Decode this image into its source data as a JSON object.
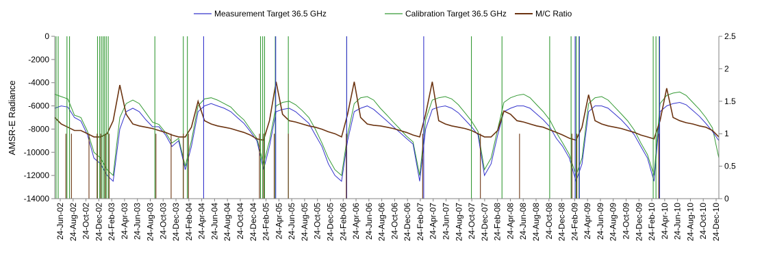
{
  "chart_data": {
    "type": "line",
    "title": "",
    "ylabel": "AMSR-E Radiance",
    "y2label": "",
    "ylim": [
      -14000,
      0
    ],
    "y2lim": [
      0,
      2.5
    ],
    "yticks": [
      0,
      -2000,
      -4000,
      -6000,
      -8000,
      -10000,
      -12000,
      -14000
    ],
    "y2ticks": [
      2.5,
      2,
      1.5,
      1,
      0.5,
      0
    ],
    "yticklabels": [
      "0",
      "-2000",
      "-4000",
      "-6000",
      "-8000",
      "-10000",
      "-12000",
      "-14000"
    ],
    "y2ticklabels": [
      "2.5",
      "2",
      "1.5",
      "1",
      "0.5",
      "0"
    ],
    "xlim": [
      "2002-06-24",
      "2010-12-24"
    ],
    "x_tick_labels": [
      "24-Jun-02",
      "24-Aug-02",
      "24-Oct-02",
      "24-Dec-02",
      "24-Feb-03",
      "24-Apr-03",
      "24-Jun-03",
      "24-Aug-03",
      "24-Oct-03",
      "24-Dec-03",
      "24-Feb-04",
      "24-Apr-04",
      "24-Jun-04",
      "24-Aug-04",
      "24-Oct-04",
      "24-Dec-04",
      "24-Feb-05",
      "24-Apr-05",
      "24-Jun-05",
      "24-Aug-05",
      "24-Oct-05",
      "24-Dec-05",
      "24-Feb-06",
      "24-Apr-06",
      "24-Jun-06",
      "24-Aug-06",
      "24-Oct-06",
      "24-Dec-06",
      "24-Feb-07",
      "24-Apr-07",
      "24-Jun-07",
      "24-Aug-07",
      "24-Oct-07",
      "24-Dec-07",
      "24-Feb-08",
      "24-Apr-08",
      "24-Jun-08",
      "24-Aug-08",
      "24-Oct-08",
      "24-Dec-08",
      "24-Feb-09",
      "24-Apr-09",
      "24-Jun-09",
      "24-Aug-09",
      "24-Oct-09",
      "24-Dec-09",
      "24-Feb-10",
      "24-Apr-10",
      "24-Jun-10",
      "24-Aug-10",
      "24-Oct-10",
      "24-Dec-10"
    ],
    "grid": false,
    "legend_position": "top",
    "series": [
      {
        "name": "Measurement Target 36.5 GHz",
        "axis": "left",
        "color": "#3333cc",
        "x": [
          "2002-06-24",
          "2002-07-24",
          "2002-08-24",
          "2002-09-24",
          "2002-10-24",
          "2002-11-24",
          "2002-12-24",
          "2003-01-24",
          "2003-02-24",
          "2003-03-24",
          "2003-04-24",
          "2003-05-24",
          "2003-06-24",
          "2003-07-24",
          "2003-08-24",
          "2003-09-24",
          "2003-10-24",
          "2003-11-24",
          "2003-12-24",
          "2004-01-24",
          "2004-02-24",
          "2004-03-24",
          "2004-04-24",
          "2004-05-24",
          "2004-06-24",
          "2004-07-24",
          "2004-08-24",
          "2004-09-24",
          "2004-10-24",
          "2004-11-24",
          "2004-12-24",
          "2005-01-24",
          "2005-02-24",
          "2005-03-24",
          "2005-04-24",
          "2005-05-24",
          "2005-06-24",
          "2005-07-24",
          "2005-08-24",
          "2005-09-24",
          "2005-10-24",
          "2005-11-24",
          "2005-12-24",
          "2006-01-24",
          "2006-02-24",
          "2006-03-24",
          "2006-04-24",
          "2006-05-24",
          "2006-06-24",
          "2006-07-24",
          "2006-08-24",
          "2006-09-24",
          "2006-10-24",
          "2006-11-24",
          "2006-12-24",
          "2007-01-24",
          "2007-02-24",
          "2007-03-24",
          "2007-04-24",
          "2007-05-24",
          "2007-06-24",
          "2007-07-24",
          "2007-08-24",
          "2007-09-24",
          "2007-10-24",
          "2007-11-24",
          "2007-12-24",
          "2008-01-24",
          "2008-02-24",
          "2008-03-24",
          "2008-04-24",
          "2008-05-24",
          "2008-06-24",
          "2008-07-24",
          "2008-08-24",
          "2008-09-24",
          "2008-10-24",
          "2008-11-24",
          "2008-12-24",
          "2009-01-24",
          "2009-02-24",
          "2009-03-24",
          "2009-04-24",
          "2009-05-24",
          "2009-06-24",
          "2009-07-24",
          "2009-08-24",
          "2009-09-24",
          "2009-10-24",
          "2009-11-24",
          "2009-12-24",
          "2010-01-24",
          "2010-02-24",
          "2010-03-24",
          "2010-04-24",
          "2010-05-24",
          "2010-06-24",
          "2010-07-24",
          "2010-08-24",
          "2010-09-24",
          "2010-10-24",
          "2010-11-24",
          "2010-12-24"
        ],
        "y": [
          -6200,
          -6000,
          -6100,
          -7000,
          -7300,
          -8500,
          -10500,
          -11000,
          -12000,
          -12500,
          -8000,
          -6500,
          -6200,
          -6500,
          -7200,
          -7800,
          -7800,
          -8500,
          -9500,
          -9000,
          -11500,
          -9500,
          -6500,
          -6000,
          -5800,
          -6000,
          -6200,
          -6500,
          -7000,
          -7500,
          -8200,
          -9000,
          -11500,
          -9500,
          -6500,
          -6300,
          -6200,
          -6500,
          -7000,
          -7500,
          -8500,
          -9500,
          -11000,
          -12000,
          -12500,
          -9000,
          -6500,
          -6200,
          -6000,
          -6300,
          -6800,
          -7300,
          -7800,
          -8300,
          -8800,
          -9300,
          -12500,
          -8000,
          -6300,
          -6100,
          -6000,
          -6200,
          -6600,
          -7200,
          -7800,
          -8500,
          -12000,
          -11000,
          -8500,
          -6500,
          -6200,
          -6000,
          -6000,
          -6200,
          -6700,
          -7200,
          -7800,
          -8800,
          -9500,
          -10500,
          -12500,
          -11000,
          -6500,
          -6000,
          -6000,
          -6200,
          -6700,
          -7200,
          -7800,
          -8500,
          -9500,
          -10500,
          -12500,
          -6500,
          -6000,
          -5800,
          -5700,
          -5900,
          -6400,
          -6900,
          -7500,
          -8200,
          -9000
        ]
      },
      {
        "name": "Calibration Target 36.5 GHz",
        "axis": "left",
        "color": "#339933",
        "x": [
          "2002-06-24",
          "2002-07-24",
          "2002-08-24",
          "2002-09-24",
          "2002-10-24",
          "2002-11-24",
          "2002-12-24",
          "2003-01-24",
          "2003-02-24",
          "2003-03-24",
          "2003-04-24",
          "2003-05-24",
          "2003-06-24",
          "2003-07-24",
          "2003-08-24",
          "2003-09-24",
          "2003-10-24",
          "2003-11-24",
          "2003-12-24",
          "2004-01-24",
          "2004-02-24",
          "2004-03-24",
          "2004-04-24",
          "2004-05-24",
          "2004-06-24",
          "2004-07-24",
          "2004-08-24",
          "2004-09-24",
          "2004-10-24",
          "2004-11-24",
          "2004-12-24",
          "2005-01-24",
          "2005-02-24",
          "2005-03-24",
          "2005-04-24",
          "2005-05-24",
          "2005-06-24",
          "2005-07-24",
          "2005-08-24",
          "2005-09-24",
          "2005-10-24",
          "2005-11-24",
          "2005-12-24",
          "2006-01-24",
          "2006-02-24",
          "2006-03-24",
          "2006-04-24",
          "2006-05-24",
          "2006-06-24",
          "2006-07-24",
          "2006-08-24",
          "2006-09-24",
          "2006-10-24",
          "2006-11-24",
          "2006-12-24",
          "2007-01-24",
          "2007-02-24",
          "2007-03-24",
          "2007-04-24",
          "2007-05-24",
          "2007-06-24",
          "2007-07-24",
          "2007-08-24",
          "2007-09-24",
          "2007-10-24",
          "2007-11-24",
          "2007-12-24",
          "2008-01-24",
          "2008-02-24",
          "2008-03-24",
          "2008-04-24",
          "2008-05-24",
          "2008-06-24",
          "2008-07-24",
          "2008-08-24",
          "2008-09-24",
          "2008-10-24",
          "2008-11-24",
          "2008-12-24",
          "2009-01-24",
          "2009-02-24",
          "2009-03-24",
          "2009-04-24",
          "2009-05-24",
          "2009-06-24",
          "2009-07-24",
          "2009-08-24",
          "2009-09-24",
          "2009-10-24",
          "2009-11-24",
          "2009-12-24",
          "2010-01-24",
          "2010-02-24",
          "2010-03-24",
          "2010-04-24",
          "2010-05-24",
          "2010-06-24",
          "2010-07-24",
          "2010-08-24",
          "2010-09-24",
          "2010-10-24",
          "2010-11-24",
          "2010-12-24"
        ],
        "y": [
          -5000,
          -5200,
          -5400,
          -6800,
          -7000,
          -8200,
          -10000,
          -10500,
          -11500,
          -12000,
          -7000,
          -5800,
          -5500,
          -5800,
          -6600,
          -7400,
          -7600,
          -8300,
          -9200,
          -8800,
          -11200,
          -9000,
          -6000,
          -5400,
          -5300,
          -5500,
          -5800,
          -6100,
          -6700,
          -7200,
          -8000,
          -8800,
          -11000,
          -9000,
          -6000,
          -5700,
          -5600,
          -5900,
          -6400,
          -7000,
          -8000,
          -9200,
          -10500,
          -11500,
          -12000,
          -8500,
          -5800,
          -5300,
          -5200,
          -5500,
          -6200,
          -6800,
          -7400,
          -8000,
          -8600,
          -9100,
          -12000,
          -7200,
          -5500,
          -5300,
          -5200,
          -5400,
          -5900,
          -6600,
          -7300,
          -8200,
          -11500,
          -10500,
          -8000,
          -5700,
          -5300,
          -5100,
          -5000,
          -5300,
          -5900,
          -6500,
          -7200,
          -8300,
          -9200,
          -10200,
          -12000,
          -10500,
          -5800,
          -5300,
          -5200,
          -5500,
          -6100,
          -6700,
          -7300,
          -8100,
          -9200,
          -10200,
          -12000,
          -5800,
          -5100,
          -4900,
          -4800,
          -5100,
          -5700,
          -6300,
          -7000,
          -7900,
          -10500
        ]
      },
      {
        "name": "M/C Ratio",
        "axis": "right",
        "color": "#6b3310",
        "x": [
          "2002-06-24",
          "2002-07-24",
          "2002-08-24",
          "2002-09-24",
          "2002-10-24",
          "2002-11-24",
          "2002-12-24",
          "2003-01-24",
          "2003-02-24",
          "2003-03-24",
          "2003-04-24",
          "2003-05-24",
          "2003-06-24",
          "2003-07-24",
          "2003-08-24",
          "2003-09-24",
          "2003-10-24",
          "2003-11-24",
          "2003-12-24",
          "2004-01-24",
          "2004-02-24",
          "2004-03-24",
          "2004-04-24",
          "2004-05-24",
          "2004-06-24",
          "2004-07-24",
          "2004-08-24",
          "2004-09-24",
          "2004-10-24",
          "2004-11-24",
          "2004-12-24",
          "2005-01-24",
          "2005-02-24",
          "2005-03-24",
          "2005-04-24",
          "2005-05-24",
          "2005-06-24",
          "2005-07-24",
          "2005-08-24",
          "2005-09-24",
          "2005-10-24",
          "2005-11-24",
          "2005-12-24",
          "2006-01-24",
          "2006-02-24",
          "2006-03-24",
          "2006-04-24",
          "2006-05-24",
          "2006-06-24",
          "2006-07-24",
          "2006-08-24",
          "2006-09-24",
          "2006-10-24",
          "2006-11-24",
          "2006-12-24",
          "2007-01-24",
          "2007-02-24",
          "2007-03-24",
          "2007-04-24",
          "2007-05-24",
          "2007-06-24",
          "2007-07-24",
          "2007-08-24",
          "2007-09-24",
          "2007-10-24",
          "2007-11-24",
          "2007-12-24",
          "2008-01-24",
          "2008-02-24",
          "2008-03-24",
          "2008-04-24",
          "2008-05-24",
          "2008-06-24",
          "2008-07-24",
          "2008-08-24",
          "2008-09-24",
          "2008-10-24",
          "2008-11-24",
          "2008-12-24",
          "2009-01-24",
          "2009-02-24",
          "2009-03-24",
          "2009-04-24",
          "2009-05-24",
          "2009-06-24",
          "2009-07-24",
          "2009-08-24",
          "2009-09-24",
          "2009-10-24",
          "2009-11-24",
          "2009-12-24",
          "2010-01-24",
          "2010-02-24",
          "2010-03-24",
          "2010-04-24",
          "2010-05-24",
          "2010-06-24",
          "2010-07-24",
          "2010-08-24",
          "2010-09-24",
          "2010-10-24",
          "2010-11-24",
          "2010-12-24"
        ],
        "y": [
          1.25,
          1.15,
          1.1,
          1.05,
          1.05,
          1.0,
          0.95,
          0.95,
          1.0,
          1.2,
          1.75,
          1.3,
          1.15,
          1.12,
          1.1,
          1.08,
          1.05,
          1.02,
          0.98,
          0.95,
          0.95,
          1.1,
          1.5,
          1.2,
          1.15,
          1.12,
          1.1,
          1.08,
          1.05,
          1.02,
          0.98,
          0.92,
          0.9,
          1.2,
          1.8,
          1.3,
          1.2,
          1.18,
          1.15,
          1.12,
          1.1,
          1.07,
          1.03,
          1.0,
          0.95,
          1.3,
          1.8,
          1.25,
          1.15,
          1.13,
          1.12,
          1.1,
          1.08,
          1.05,
          1.02,
          0.98,
          0.95,
          1.3,
          1.8,
          1.2,
          1.15,
          1.12,
          1.1,
          1.08,
          1.05,
          1.0,
          0.95,
          0.95,
          1.05,
          1.35,
          1.3,
          1.2,
          1.18,
          1.15,
          1.12,
          1.1,
          1.06,
          1.02,
          0.98,
          0.93,
          0.9,
          1.1,
          1.6,
          1.2,
          1.15,
          1.12,
          1.1,
          1.08,
          1.05,
          1.02,
          0.98,
          0.95,
          0.92,
          1.2,
          1.7,
          1.25,
          1.2,
          1.17,
          1.15,
          1.12,
          1.1,
          1.05,
          0.95
        ]
      }
    ],
    "spikes": [
      {
        "series": 1,
        "x": [
          "2002-06-30",
          "2002-07-10",
          "2002-08-20",
          "2002-09-01",
          "2003-01-10",
          "2003-01-20",
          "2003-01-28",
          "2003-02-05",
          "2003-02-12",
          "2003-02-20",
          "2003-03-01",
          "2003-10-05",
          "2004-02-15",
          "2004-03-05",
          "2005-02-10",
          "2005-02-20",
          "2005-03-01",
          "2005-04-20",
          "2005-06-20",
          "2006-03-20",
          "2007-10-24",
          "2008-03-15",
          "2008-10-24",
          "2009-02-01",
          "2009-02-25",
          "2009-03-10",
          "2010-02-20",
          "2010-03-05",
          "2010-03-20"
        ],
        "direction": "both"
      },
      {
        "series": 0,
        "x": [
          "2004-05-20",
          "2005-04-22",
          "2006-03-20",
          "2007-03-15",
          "2009-02-20",
          "2009-03-12",
          "2010-03-22"
        ],
        "direction": "both"
      },
      {
        "series": 2,
        "x": [
          "2002-08-15",
          "2002-09-10",
          "2002-12-01",
          "2003-01-08",
          "2003-01-25",
          "2003-02-15",
          "2003-03-05",
          "2003-10-10",
          "2003-12-20",
          "2004-02-15",
          "2004-03-10",
          "2005-02-05",
          "2005-02-25",
          "2005-04-15",
          "2005-06-20",
          "2006-03-18",
          "2007-03-10",
          "2007-12-05",
          "2008-06-05",
          "2009-02-05",
          "2009-02-28",
          "2010-03-18"
        ],
        "direction": "down"
      }
    ]
  }
}
